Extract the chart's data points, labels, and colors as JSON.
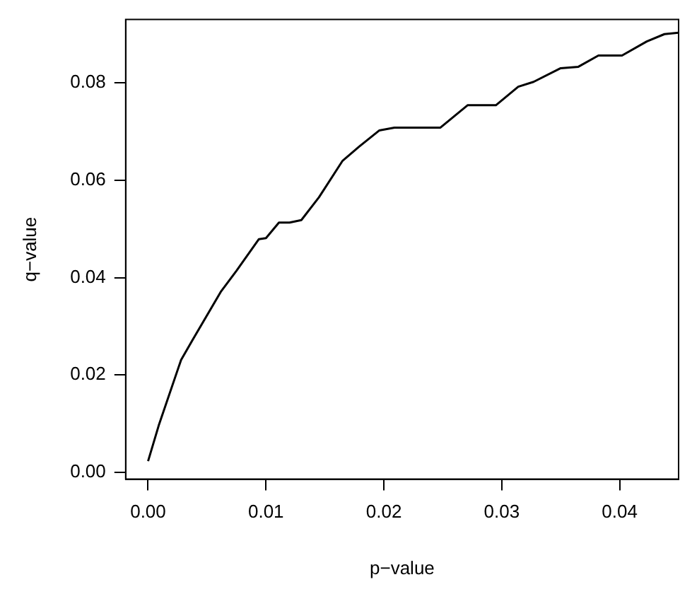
{
  "chart_data": {
    "type": "line",
    "xlabel": "p−value",
    "ylabel": "q−value",
    "xlim": [
      -0.0019,
      0.045
    ],
    "ylim": [
      -0.0014,
      0.093
    ],
    "xticks": [
      {
        "value": 0,
        "label": "0.00"
      },
      0.01,
      0.02,
      0.03,
      0.04
    ],
    "yticks": [
      {
        "value": 0,
        "label": "0.00"
      },
      0.02,
      0.04,
      0.06,
      0.08
    ],
    "grid": false,
    "legend": false,
    "marker": "none",
    "line_style": "solid",
    "series": [
      {
        "color": "#000000",
        "x": [
          0,
          0.0009,
          0.0028,
          0.0038,
          0.0062,
          0.0075,
          0.0094,
          0.01,
          0.0111,
          0.012,
          0.013,
          0.0145,
          0.0165,
          0.0179,
          0.0196,
          0.0209,
          0.0248,
          0.0271,
          0.0295,
          0.0314,
          0.0327,
          0.035,
          0.0365,
          0.0382,
          0.0402,
          0.0423,
          0.0438,
          0.045
        ],
        "values": [
          0.0023,
          0.0096,
          0.0231,
          0.0273,
          0.0372,
          0.0414,
          0.0479,
          0.0481,
          0.0513,
          0.0513,
          0.0518,
          0.0565,
          0.064,
          0.0669,
          0.0702,
          0.0708,
          0.0708,
          0.0754,
          0.0754,
          0.0792,
          0.0802,
          0.083,
          0.0833,
          0.0856,
          0.0856,
          0.0885,
          0.09,
          0.0903
        ]
      }
    ]
  }
}
